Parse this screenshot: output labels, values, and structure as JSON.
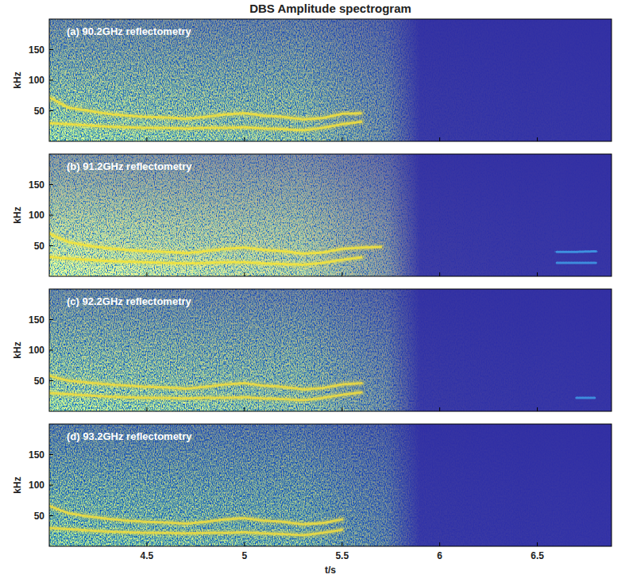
{
  "title": "DBS Amplitude spectrogram",
  "chart_data": [
    {
      "type": "spectrogram",
      "title": "(a) 90.2GHz reflectometry",
      "ylabel": "kHz",
      "x": [
        4.0,
        4.1,
        4.2,
        4.3,
        4.4,
        4.5,
        4.6,
        4.7,
        4.8,
        4.9,
        5.0,
        5.1,
        5.2,
        5.3,
        5.4,
        5.5,
        5.6,
        5.7,
        5.8,
        5.9,
        6.0,
        6.1,
        6.2,
        6.3,
        6.4,
        6.5,
        6.6,
        6.7,
        6.8
      ],
      "xlim": [
        4.0,
        6.88
      ],
      "ylim": [
        0,
        200
      ],
      "xticks": [
        4.5,
        5,
        5.5,
        6,
        6.5
      ],
      "yticks": [
        50,
        100,
        150
      ],
      "tick_labels": "y",
      "series": [
        {
          "color": "#f2e03c",
          "values": [
            72,
            55,
            50,
            45,
            42,
            40,
            39,
            37,
            40,
            44,
            46,
            42,
            40,
            36,
            38,
            45,
            46,
            null,
            null,
            null,
            null,
            null,
            null,
            null,
            null,
            null,
            null,
            null,
            null
          ]
        },
        {
          "color": "#f2e03c",
          "values": [
            30,
            28,
            26,
            24,
            23,
            22,
            22,
            21,
            22,
            22,
            23,
            21,
            20,
            18,
            22,
            28,
            32,
            null,
            null,
            null,
            null,
            null,
            null,
            null,
            null,
            null,
            null,
            null,
            null
          ]
        }
      ]
    },
    {
      "type": "spectrogram",
      "title": "(b) 91.2GHz reflectometry",
      "ylabel": "kHz",
      "x": [
        4.0,
        4.1,
        4.2,
        4.3,
        4.4,
        4.5,
        4.6,
        4.7,
        4.8,
        4.9,
        5.0,
        5.1,
        5.2,
        5.3,
        5.4,
        5.5,
        5.6,
        5.7,
        5.8,
        5.9,
        6.0,
        6.1,
        6.2,
        6.3,
        6.4,
        6.5,
        6.6,
        6.7,
        6.8
      ],
      "xlim": [
        4.0,
        6.88
      ],
      "ylim": [
        0,
        200
      ],
      "xticks": [
        4.5,
        5,
        5.5,
        6,
        6.5
      ],
      "yticks": [
        50,
        100,
        150
      ],
      "tick_labels": "y",
      "series": [
        {
          "color": "#f5e43a",
          "values": [
            70,
            56,
            50,
            46,
            43,
            41,
            40,
            38,
            41,
            45,
            47,
            43,
            41,
            37,
            39,
            45,
            47,
            48,
            null,
            null,
            null,
            null,
            null,
            null,
            null,
            null,
            null,
            null,
            null
          ]
        },
        {
          "color": "#f5e43a",
          "values": [
            32,
            29,
            27,
            25,
            24,
            23,
            22,
            21,
            22,
            23,
            23,
            21,
            20,
            19,
            22,
            27,
            31,
            null,
            null,
            null,
            null,
            null,
            null,
            null,
            null,
            null,
            null,
            null,
            null
          ]
        },
        {
          "color": "#3f9be6",
          "values": [
            null,
            null,
            null,
            null,
            null,
            null,
            null,
            null,
            null,
            null,
            null,
            null,
            null,
            null,
            null,
            null,
            null,
            null,
            null,
            null,
            null,
            null,
            null,
            null,
            null,
            null,
            40,
            40,
            41
          ]
        },
        {
          "color": "#3f9be6",
          "values": [
            null,
            null,
            null,
            null,
            null,
            null,
            null,
            null,
            null,
            null,
            null,
            null,
            null,
            null,
            null,
            null,
            null,
            null,
            null,
            null,
            null,
            null,
            null,
            null,
            null,
            null,
            22,
            22,
            22
          ]
        }
      ]
    },
    {
      "type": "spectrogram",
      "title": "(c) 92.2GHz reflectometry",
      "ylabel": "kHz",
      "x": [
        4.0,
        4.1,
        4.2,
        4.3,
        4.4,
        4.5,
        4.6,
        4.7,
        4.8,
        4.9,
        5.0,
        5.1,
        5.2,
        5.3,
        5.4,
        5.5,
        5.6,
        5.7,
        5.8,
        5.9,
        6.0,
        6.1,
        6.2,
        6.3,
        6.4,
        6.5,
        6.6,
        6.7,
        6.8
      ],
      "xlim": [
        4.0,
        6.88
      ],
      "ylim": [
        0,
        200
      ],
      "xticks": [
        4.5,
        5,
        5.5,
        6,
        6.5
      ],
      "yticks": [
        50,
        100,
        150
      ],
      "tick_labels": "y",
      "series": [
        {
          "color": "#eedc40",
          "values": [
            58,
            50,
            47,
            44,
            42,
            40,
            39,
            37,
            40,
            44,
            46,
            42,
            40,
            36,
            38,
            44,
            46,
            null,
            null,
            null,
            null,
            null,
            null,
            null,
            null,
            null,
            null,
            null,
            null
          ]
        },
        {
          "color": "#eedc40",
          "values": [
            30,
            28,
            26,
            24,
            23,
            22,
            22,
            21,
            22,
            22,
            23,
            21,
            20,
            18,
            22,
            27,
            31,
            null,
            null,
            null,
            null,
            null,
            null,
            null,
            null,
            null,
            null,
            null,
            null
          ]
        },
        {
          "color": "#3f9be6",
          "values": [
            null,
            null,
            null,
            null,
            null,
            null,
            null,
            null,
            null,
            null,
            null,
            null,
            null,
            null,
            null,
            null,
            null,
            null,
            null,
            null,
            null,
            null,
            null,
            null,
            null,
            null,
            null,
            22,
            22
          ]
        }
      ]
    },
    {
      "type": "spectrogram",
      "title": "(d) 93.2GHz reflectometry",
      "ylabel": "kHz",
      "xlabel": "t/s",
      "x": [
        4.0,
        4.1,
        4.2,
        4.3,
        4.4,
        4.5,
        4.6,
        4.7,
        4.8,
        4.9,
        5.0,
        5.1,
        5.2,
        5.3,
        5.4,
        5.5,
        5.6,
        5.7,
        5.8,
        5.9,
        6.0,
        6.1,
        6.2,
        6.3,
        6.4,
        6.5,
        6.6,
        6.7,
        6.8
      ],
      "xlim": [
        4.0,
        6.88
      ],
      "ylim": [
        0,
        200
      ],
      "xticks": [
        4.5,
        5,
        5.5,
        6,
        6.5
      ],
      "yticks": [
        50,
        100,
        150
      ],
      "series": [
        {
          "color": "#eedc40",
          "values": [
            66,
            54,
            49,
            45,
            42,
            40,
            39,
            37,
            40,
            44,
            46,
            42,
            40,
            36,
            38,
            44,
            null,
            null,
            null,
            null,
            null,
            null,
            null,
            null,
            null,
            null,
            null,
            null,
            null
          ]
        },
        {
          "color": "#eedc40",
          "values": [
            30,
            28,
            26,
            24,
            23,
            22,
            22,
            21,
            22,
            22,
            23,
            21,
            20,
            18,
            22,
            27,
            null,
            null,
            null,
            null,
            null,
            null,
            null,
            null,
            null,
            null,
            null,
            null,
            null
          ]
        }
      ]
    }
  ]
}
